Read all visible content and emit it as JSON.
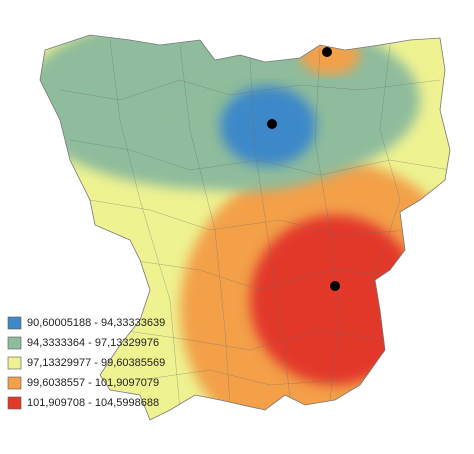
{
  "legend": {
    "items": [
      {
        "label": "90,60005188 - 94,33333639",
        "color": "#3d88c9"
      },
      {
        "label": "94,3333364 - 97,13329976",
        "color": "#8fbc9c"
      },
      {
        "label": "97,13329977 - 99,60385569",
        "color": "#eef291"
      },
      {
        "label": "99,6038557 - 101,9097079",
        "color": "#f3a04a"
      },
      {
        "label": "101,909708 - 104,5998688",
        "color": "#e2392b"
      }
    ]
  }
}
